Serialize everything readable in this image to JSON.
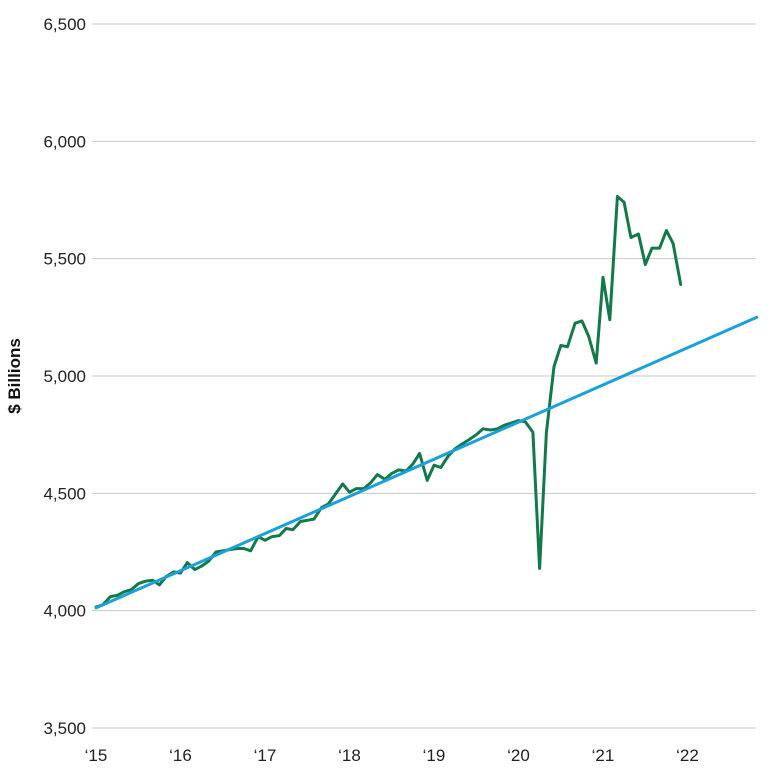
{
  "chart_data": {
    "type": "line",
    "ylabel": "$ Billions",
    "ylim": [
      3500,
      6500
    ],
    "xlim": [
      2015,
      2022.85
    ],
    "yticks": [
      {
        "value": 3500,
        "label": "3,500"
      },
      {
        "value": 4000,
        "label": "4,000"
      },
      {
        "value": 4500,
        "label": "4,500"
      },
      {
        "value": 5000,
        "label": "5,000"
      },
      {
        "value": 5500,
        "label": "5,500"
      },
      {
        "value": 6000,
        "label": "6,000"
      },
      {
        "value": 6500,
        "label": "6,500"
      }
    ],
    "xticks": [
      {
        "value": 2015,
        "label": "‘15"
      },
      {
        "value": 2016,
        "label": "‘16"
      },
      {
        "value": 2017,
        "label": "‘17"
      },
      {
        "value": 2018,
        "label": "‘18"
      },
      {
        "value": 2019,
        "label": "‘19"
      },
      {
        "value": 2020,
        "label": "‘20"
      },
      {
        "value": 2021,
        "label": "‘21"
      },
      {
        "value": 2022,
        "label": "‘22"
      }
    ],
    "grid": true,
    "series": [
      {
        "color": "#127a4a",
        "x": [
          2015.0,
          2015.08,
          2015.17,
          2015.25,
          2015.33,
          2015.42,
          2015.5,
          2015.58,
          2015.67,
          2015.75,
          2015.83,
          2015.92,
          2016.0,
          2016.08,
          2016.17,
          2016.25,
          2016.33,
          2016.42,
          2016.5,
          2016.58,
          2016.67,
          2016.75,
          2016.83,
          2016.92,
          2017.0,
          2017.08,
          2017.17,
          2017.25,
          2017.33,
          2017.42,
          2017.5,
          2017.58,
          2017.67,
          2017.75,
          2017.83,
          2017.92,
          2018.0,
          2018.08,
          2018.17,
          2018.25,
          2018.33,
          2018.42,
          2018.5,
          2018.58,
          2018.67,
          2018.75,
          2018.83,
          2018.92,
          2019.0,
          2019.08,
          2019.17,
          2019.25,
          2019.33,
          2019.42,
          2019.5,
          2019.58,
          2019.67,
          2019.75,
          2019.83,
          2019.92,
          2020.0,
          2020.08,
          2020.17,
          2020.25,
          2020.33,
          2020.42,
          2020.5,
          2020.58,
          2020.67,
          2020.75,
          2020.83,
          2020.92,
          2021.0,
          2021.08,
          2021.17,
          2021.25,
          2021.33,
          2021.42,
          2021.5,
          2021.58,
          2021.67,
          2021.75,
          2021.83,
          2021.92
        ],
        "values": [
          4015,
          4025,
          4060,
          4065,
          4080,
          4090,
          4115,
          4125,
          4130,
          4110,
          4145,
          4165,
          4160,
          4205,
          4175,
          4190,
          4210,
          4250,
          4255,
          4260,
          4265,
          4265,
          4255,
          4315,
          4300,
          4315,
          4320,
          4350,
          4345,
          4380,
          4385,
          4390,
          4440,
          4455,
          4495,
          4540,
          4505,
          4520,
          4520,
          4545,
          4580,
          4560,
          4585,
          4600,
          4595,
          4625,
          4670,
          4555,
          4620,
          4610,
          4660,
          4690,
          4710,
          4730,
          4750,
          4775,
          4770,
          4775,
          4790,
          4800,
          4810,
          4805,
          4760,
          4180,
          4760,
          5040,
          5130,
          5125,
          5225,
          5235,
          5170,
          5055,
          5420,
          5240,
          5765,
          5740,
          5590,
          5605,
          5475,
          5545,
          5545,
          5620,
          5565,
          5390
        ]
      },
      {
        "color": "#1aa0dc",
        "x": [
          2015.0,
          2022.82
        ],
        "values": [
          4012,
          5250
        ]
      }
    ]
  }
}
